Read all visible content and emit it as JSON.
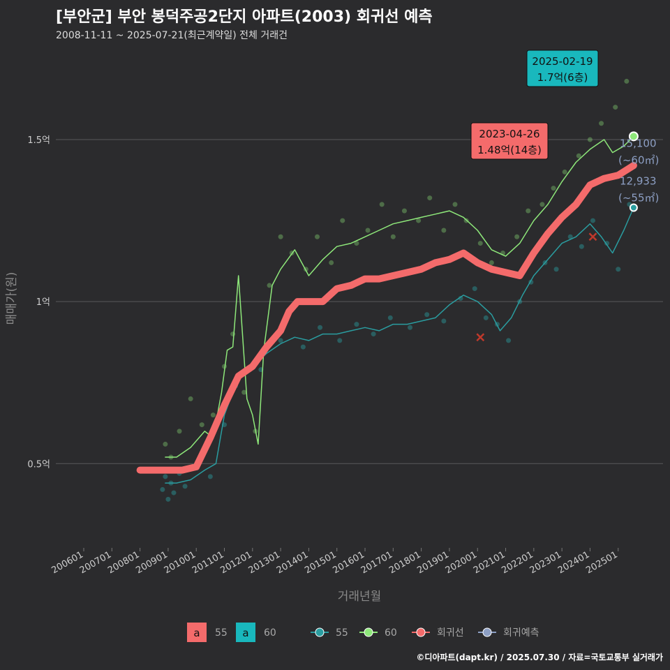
{
  "title": "[부안군] 부안 봉덕주공2단지 아파트(2003) 회귀선 예측",
  "subtitle": "2008-11-11 ~ 2025-07-21(최근계약일) 전체 거래건",
  "footer": "©디아파트(dapt.kr) / 2025.07.30 / 자료=국토교통부 실거래가",
  "colors": {
    "background": "#2b2b2d",
    "series_55": "#2a9da0",
    "series_60": "#8ee87a",
    "regression": "#f46b6b",
    "regression_forecast": "#8d9fc4",
    "min_marker": "#c0392b",
    "callout_60": "#19b8bd",
    "callout_55": "#f46b6b"
  },
  "chart_data": {
    "type": "line",
    "xlabel": "거래년월",
    "ylabel": "매매가(원)",
    "x_ticks": [
      "200601",
      "200701",
      "200801",
      "200901",
      "201001",
      "201101",
      "201201",
      "201301",
      "201401",
      "201501",
      "201601",
      "201701",
      "201801",
      "201901",
      "202001",
      "202101",
      "202201",
      "202301",
      "202401",
      "202501"
    ],
    "y_ticks": [
      {
        "value": 0.5,
        "label": "0.5억"
      },
      {
        "value": 1.0,
        "label": "1억"
      },
      {
        "value": 1.5,
        "label": "1.5억"
      }
    ],
    "ylim": [
      0.24,
      1.78
    ],
    "grid": true,
    "legend_position": "bottom",
    "legend": {
      "fill_keys": [
        {
          "glyph": "a",
          "label": "55"
        },
        {
          "glyph": "a",
          "label": "60"
        }
      ],
      "line_keys": [
        {
          "label": "55"
        },
        {
          "label": "60"
        },
        {
          "label": "회귀선"
        },
        {
          "label": "회귀예측"
        }
      ]
    },
    "series": [
      {
        "name": "55",
        "x": [
          2008.9,
          2009.3,
          2009.8,
          2010.3,
          2010.7,
          2011.0,
          2011.3,
          2011.6,
          2012.0,
          2012.5,
          2013.0,
          2013.5,
          2014.0,
          2014.5,
          2015.0,
          2015.5,
          2016.0,
          2016.5,
          2017.0,
          2017.5,
          2018.0,
          2018.5,
          2019.0,
          2019.5,
          2020.0,
          2020.5,
          2020.8,
          2021.2,
          2021.6,
          2022.0,
          2022.5,
          2023.0,
          2023.5,
          2024.0,
          2024.4,
          2024.8,
          2025.2,
          2025.55
        ],
        "y": [
          0.44,
          0.44,
          0.45,
          0.48,
          0.5,
          0.65,
          0.72,
          0.78,
          0.8,
          0.84,
          0.87,
          0.89,
          0.88,
          0.9,
          0.9,
          0.91,
          0.92,
          0.91,
          0.93,
          0.93,
          0.94,
          0.95,
          0.99,
          1.02,
          1.0,
          0.96,
          0.91,
          0.95,
          1.02,
          1.08,
          1.13,
          1.18,
          1.2,
          1.24,
          1.2,
          1.15,
          1.22,
          1.29
        ]
      },
      {
        "name": "60",
        "x": [
          2008.9,
          2009.3,
          2009.8,
          2010.3,
          2010.6,
          2010.9,
          2011.1,
          2011.3,
          2011.5,
          2011.8,
          2012.0,
          2012.2,
          2012.4,
          2012.7,
          2013.0,
          2013.5,
          2014.0,
          2014.5,
          2015.0,
          2015.5,
          2016.0,
          2016.5,
          2017.0,
          2017.5,
          2018.0,
          2018.5,
          2019.0,
          2019.5,
          2020.0,
          2020.5,
          2021.0,
          2021.5,
          2022.0,
          2022.5,
          2023.0,
          2023.5,
          2024.0,
          2024.5,
          2024.8,
          2025.2,
          2025.55
        ],
        "y": [
          0.52,
          0.52,
          0.55,
          0.6,
          0.58,
          0.72,
          0.85,
          0.86,
          1.08,
          0.7,
          0.65,
          0.56,
          0.85,
          1.05,
          1.1,
          1.16,
          1.08,
          1.13,
          1.17,
          1.18,
          1.2,
          1.22,
          1.24,
          1.25,
          1.26,
          1.27,
          1.28,
          1.26,
          1.22,
          1.16,
          1.14,
          1.18,
          1.25,
          1.3,
          1.37,
          1.43,
          1.47,
          1.5,
          1.46,
          1.48,
          1.51
        ]
      },
      {
        "name": "회귀선",
        "x": [
          2008.0,
          2009.0,
          2009.5,
          2010.0,
          2010.5,
          2011.0,
          2011.5,
          2012.0,
          2012.5,
          2013.0,
          2013.3,
          2013.6,
          2014.0,
          2014.5,
          2015.0,
          2015.5,
          2016.0,
          2016.5,
          2017.0,
          2017.5,
          2018.0,
          2018.5,
          2019.0,
          2019.5,
          2020.0,
          2020.5,
          2021.0,
          2021.5,
          2022.0,
          2022.5,
          2023.0,
          2023.5,
          2024.0,
          2024.5,
          2025.0,
          2025.55
        ],
        "y": [
          0.48,
          0.48,
          0.48,
          0.49,
          0.58,
          0.68,
          0.77,
          0.8,
          0.86,
          0.91,
          0.97,
          1.0,
          1.0,
          1.0,
          1.04,
          1.05,
          1.07,
          1.07,
          1.08,
          1.09,
          1.1,
          1.12,
          1.13,
          1.15,
          1.12,
          1.1,
          1.09,
          1.08,
          1.15,
          1.21,
          1.26,
          1.3,
          1.36,
          1.38,
          1.39,
          1.42
        ]
      },
      {
        "name": "회귀예측",
        "x": [],
        "y": []
      }
    ],
    "scatter_points": {
      "55": {
        "x": [
          2008.8,
          2008.9,
          2009.0,
          2009.1,
          2009.2,
          2009.4,
          2009.6,
          2010.1,
          2010.5,
          2011.0,
          2011.4,
          2012.3,
          2013.0,
          2013.8,
          2014.4,
          2015.1,
          2015.7,
          2016.3,
          2016.9,
          2017.6,
          2018.2,
          2018.8,
          2019.4,
          2019.9,
          2020.3,
          2020.7,
          2021.1,
          2021.5,
          2021.9,
          2022.4,
          2022.8,
          2023.3,
          2023.7,
          2024.1,
          2024.6,
          2025.0,
          2025.4
        ],
        "y": [
          0.42,
          0.46,
          0.39,
          0.44,
          0.41,
          0.47,
          0.43,
          0.5,
          0.46,
          0.62,
          0.74,
          0.79,
          0.88,
          0.86,
          0.92,
          0.88,
          0.93,
          0.9,
          0.95,
          0.92,
          0.96,
          0.94,
          1.01,
          1.04,
          0.95,
          0.93,
          0.88,
          1.0,
          1.06,
          1.12,
          1.1,
          1.2,
          1.17,
          1.25,
          1.18,
          1.1,
          1.3
        ]
      },
      "60": {
        "x": [
          2008.9,
          2009.1,
          2009.4,
          2009.8,
          2010.2,
          2010.6,
          2011.0,
          2011.3,
          2011.7,
          2012.1,
          2012.6,
          2013.0,
          2013.4,
          2013.9,
          2014.3,
          2014.8,
          2015.2,
          2015.7,
          2016.1,
          2016.6,
          2017.0,
          2017.4,
          2017.9,
          2018.3,
          2018.8,
          2019.2,
          2019.6,
          2020.1,
          2020.5,
          2020.9,
          2021.4,
          2021.8,
          2022.3,
          2022.7,
          2023.1,
          2023.6,
          2024.0,
          2024.4,
          2024.9,
          2025.3
        ],
        "y": [
          0.56,
          0.52,
          0.6,
          0.7,
          0.62,
          0.65,
          0.8,
          0.9,
          0.72,
          0.6,
          1.05,
          1.2,
          1.15,
          1.1,
          1.2,
          1.12,
          1.25,
          1.18,
          1.22,
          1.3,
          1.2,
          1.28,
          1.25,
          1.32,
          1.22,
          1.3,
          1.25,
          1.18,
          1.12,
          1.15,
          1.2,
          1.28,
          1.3,
          1.35,
          1.4,
          1.45,
          1.5,
          1.55,
          1.6,
          1.68
        ]
      }
    },
    "min_markers": [
      {
        "x": 2020.1,
        "y": 0.89
      },
      {
        "x": 2024.1,
        "y": 1.2
      }
    ],
    "annotations": [
      {
        "date": "2025-02-19",
        "value": "1.7억(6층)",
        "x": 2025.13,
        "y": 1.7,
        "series": "60"
      },
      {
        "date": "2023-04-26",
        "value": "1.48억(14층)",
        "x": 2023.32,
        "y": 1.48,
        "series": "55"
      }
    ],
    "end_labels": [
      {
        "value": "15,100",
        "area": "(~60㎡)",
        "y": 1.51
      },
      {
        "value": "12,933",
        "area": "(~55㎡)",
        "y": 1.29
      }
    ]
  }
}
